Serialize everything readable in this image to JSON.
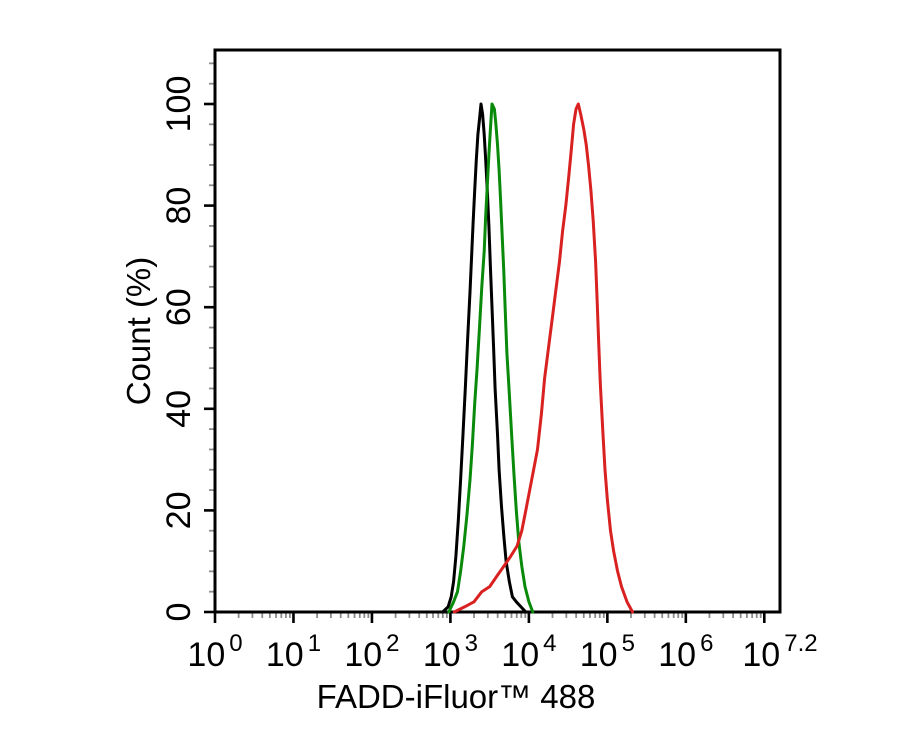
{
  "page": {
    "background": "#ffffff",
    "frame_color": "#000000"
  },
  "chart_data": {
    "type": "line",
    "subtype": "flow-cytometry-histogram-overlay",
    "title": "",
    "xlabel": "FADD-iFluor™ 488",
    "ylabel": "Count (%)",
    "grid": false,
    "legend": null,
    "x_axis": {
      "scale": "log10",
      "min_exponent": 0,
      "max_exponent": 7.2,
      "major_tick_exponents": [
        0,
        1,
        2,
        3,
        4,
        5,
        6,
        7
      ],
      "minor_ticks_per_decade": "2-9 log spaced",
      "label_base": "10",
      "labels": [
        {
          "base": "10",
          "exponent": "0",
          "log10": 0
        },
        {
          "base": "10",
          "exponent": "1",
          "log10": 1
        },
        {
          "base": "10",
          "exponent": "2",
          "log10": 2
        },
        {
          "base": "10",
          "exponent": "3",
          "log10": 3
        },
        {
          "base": "10",
          "exponent": "4",
          "log10": 4
        },
        {
          "base": "10",
          "exponent": "5",
          "log10": 5
        },
        {
          "base": "10",
          "exponent": "6",
          "log10": 6
        },
        {
          "base": "10",
          "exponent": "7.2",
          "log10": 7.2
        }
      ],
      "tick_color_major": "#000000",
      "tick_color_minor": "#8c8c8c"
    },
    "y_axis": {
      "min": 0,
      "max": 110.6,
      "major_ticks": [
        0,
        20,
        40,
        60,
        80,
        100
      ],
      "minor_tick_step": 4,
      "tick_color_major": "#000000",
      "tick_color_minor": "#8c8c8c"
    },
    "series": [
      {
        "name": "black",
        "color": "#000000",
        "peak_log10": 3.39,
        "peak_percent": 100,
        "points_log10_percent": [
          [
            2.9,
            0
          ],
          [
            2.97,
            1
          ],
          [
            3.01,
            3
          ],
          [
            3.04,
            6
          ],
          [
            3.07,
            11
          ],
          [
            3.1,
            18
          ],
          [
            3.13,
            26
          ],
          [
            3.16,
            35
          ],
          [
            3.19,
            44
          ],
          [
            3.22,
            54
          ],
          [
            3.25,
            63
          ],
          [
            3.27,
            70
          ],
          [
            3.29,
            77
          ],
          [
            3.31,
            83
          ],
          [
            3.33,
            89
          ],
          [
            3.35,
            94
          ],
          [
            3.37,
            97
          ],
          [
            3.39,
            100
          ],
          [
            3.41,
            98
          ],
          [
            3.43,
            94
          ],
          [
            3.45,
            89
          ],
          [
            3.47,
            83
          ],
          [
            3.49,
            76
          ],
          [
            3.51,
            68
          ],
          [
            3.53,
            60
          ],
          [
            3.55,
            52
          ],
          [
            3.57,
            44
          ],
          [
            3.6,
            35
          ],
          [
            3.62,
            28
          ],
          [
            3.65,
            21
          ],
          [
            3.68,
            15
          ],
          [
            3.71,
            10
          ],
          [
            3.75,
            6
          ],
          [
            3.79,
            3
          ],
          [
            3.84,
            2
          ],
          [
            3.9,
            1
          ],
          [
            3.96,
            0
          ]
        ]
      },
      {
        "name": "green",
        "color": "#0a8a0a",
        "peak_log10": 3.53,
        "peak_percent": 100,
        "points_log10_percent": [
          [
            2.98,
            0
          ],
          [
            3.04,
            2
          ],
          [
            3.09,
            4
          ],
          [
            3.13,
            8
          ],
          [
            3.17,
            13
          ],
          [
            3.21,
            19
          ],
          [
            3.25,
            26
          ],
          [
            3.28,
            33
          ],
          [
            3.31,
            41
          ],
          [
            3.34,
            48
          ],
          [
            3.37,
            56
          ],
          [
            3.4,
            64
          ],
          [
            3.43,
            71
          ],
          [
            3.45,
            78
          ],
          [
            3.47,
            84
          ],
          [
            3.49,
            90
          ],
          [
            3.51,
            95
          ],
          [
            3.53,
            100
          ],
          [
            3.56,
            99
          ],
          [
            3.58,
            96
          ],
          [
            3.6,
            92
          ],
          [
            3.62,
            87
          ],
          [
            3.64,
            81
          ],
          [
            3.66,
            74
          ],
          [
            3.68,
            67
          ],
          [
            3.7,
            59
          ],
          [
            3.72,
            51
          ],
          [
            3.75,
            43
          ],
          [
            3.78,
            35
          ],
          [
            3.81,
            27
          ],
          [
            3.84,
            20
          ],
          [
            3.87,
            14
          ],
          [
            3.91,
            9
          ],
          [
            3.95,
            5
          ],
          [
            4.0,
            2
          ],
          [
            4.05,
            0
          ]
        ]
      },
      {
        "name": "red",
        "color": "#d92121",
        "peak_log10": 4.63,
        "peak_percent": 100,
        "points_log10_percent": [
          [
            3.05,
            0
          ],
          [
            3.18,
            1
          ],
          [
            3.3,
            2
          ],
          [
            3.4,
            4
          ],
          [
            3.5,
            5
          ],
          [
            3.59,
            7
          ],
          [
            3.68,
            9
          ],
          [
            3.77,
            11
          ],
          [
            3.85,
            13
          ],
          [
            3.91,
            16
          ],
          [
            3.96,
            20
          ],
          [
            4.01,
            24
          ],
          [
            4.06,
            28
          ],
          [
            4.11,
            32
          ],
          [
            4.16,
            39
          ],
          [
            4.2,
            46
          ],
          [
            4.25,
            52
          ],
          [
            4.3,
            58
          ],
          [
            4.34,
            63
          ],
          [
            4.39,
            69
          ],
          [
            4.43,
            75
          ],
          [
            4.47,
            80
          ],
          [
            4.51,
            86
          ],
          [
            4.54,
            91
          ],
          [
            4.57,
            96
          ],
          [
            4.6,
            99
          ],
          [
            4.63,
            100
          ],
          [
            4.66,
            98
          ],
          [
            4.7,
            95
          ],
          [
            4.73,
            92
          ],
          [
            4.76,
            88
          ],
          [
            4.79,
            83
          ],
          [
            4.82,
            77
          ],
          [
            4.85,
            69
          ],
          [
            4.87,
            61
          ],
          [
            4.89,
            53
          ],
          [
            4.91,
            45
          ],
          [
            4.94,
            36
          ],
          [
            4.97,
            28
          ],
          [
            5.0,
            22
          ],
          [
            5.04,
            16
          ],
          [
            5.08,
            12
          ],
          [
            5.13,
            8
          ],
          [
            5.18,
            5
          ],
          [
            5.25,
            2
          ],
          [
            5.32,
            0
          ]
        ]
      }
    ]
  }
}
